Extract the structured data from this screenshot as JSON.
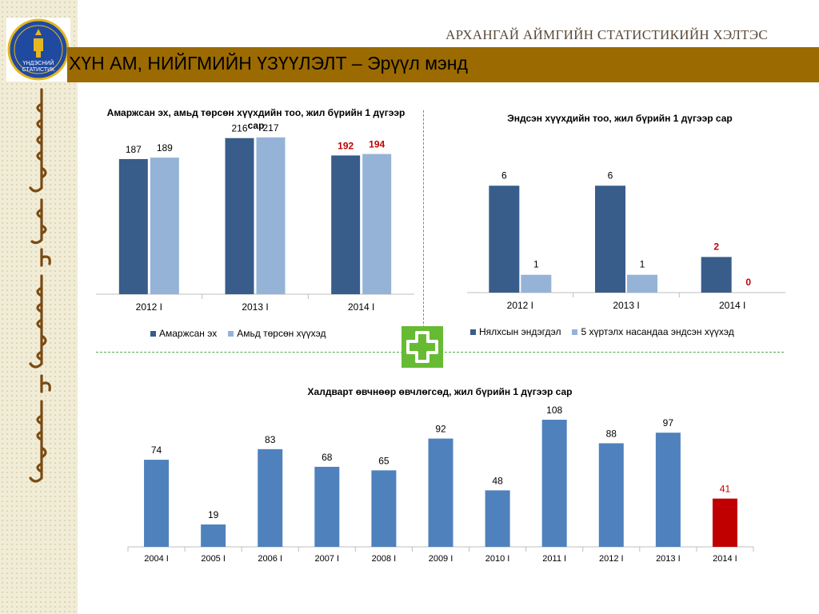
{
  "header": {
    "agency": "АРХАНГАЙ АЙМГИЙН СТАТИСТИКИЙН ХЭЛТЭС",
    "title": "ХҮН АМ, НИЙГМИЙН ҮЗҮҮЛЭЛТ – Эрүүл мэнд",
    "logo_text_1": "ҮНДЭСНИЙ",
    "logo_text_2": "СТАТИСТИК"
  },
  "colors": {
    "banner": "#9b6a00",
    "dark_blue": "#385d8a",
    "light_blue": "#95b3d7",
    "mid_blue": "#4f81bd",
    "highlight": "#c00000",
    "divider": "#4cae4c",
    "cross": "#66bb33"
  },
  "chart_data": [
    {
      "type": "bar",
      "title": "Амаржсан эх, амьд төрсөн хүүхдийн тоо, жил бүрийн 1 дүгээр сар",
      "categories": [
        "2012 I",
        "2013 I",
        "2014 I"
      ],
      "series": [
        {
          "name": "Амаржсан эх",
          "values": [
            187,
            216,
            192
          ]
        },
        {
          "name": "Амьд төрсөн хүүхэд",
          "values": [
            189,
            217,
            194
          ]
        }
      ],
      "highlight_category": "2014 I",
      "ylim": [
        0,
        250
      ],
      "grid": false,
      "legend": "bottom"
    },
    {
      "type": "bar",
      "title": "Эндсэн хүүхдийн тоо, жил бүрийн 1 дүгээр сар",
      "categories": [
        "2012 I",
        "2013 I",
        "2014 I"
      ],
      "series": [
        {
          "name": "Нялхсын эндэгдэл",
          "values": [
            6,
            6,
            2
          ]
        },
        {
          "name": "5 хүртэлх насандаа эндсэн хүүхэд",
          "values": [
            1,
            1,
            0
          ]
        }
      ],
      "highlight_category": "2014 I",
      "ylim": [
        0,
        7
      ],
      "grid": false,
      "legend": "bottom"
    },
    {
      "type": "bar",
      "title": "Халдварт өвчнөөр өвчлөгсөд, жил бүрийн 1 дүгээр сар",
      "categories": [
        "2004 I",
        "2005 I",
        "2006 I",
        "2007 I",
        "2008 I",
        "2009 I",
        "2010 I",
        "2011 I",
        "2012 I",
        "2013 I",
        "2014 I"
      ],
      "values": [
        74,
        19,
        83,
        68,
        65,
        92,
        48,
        108,
        88,
        97,
        41
      ],
      "highlight_category": "2014 I",
      "ylim": [
        0,
        125
      ],
      "grid": false
    }
  ]
}
